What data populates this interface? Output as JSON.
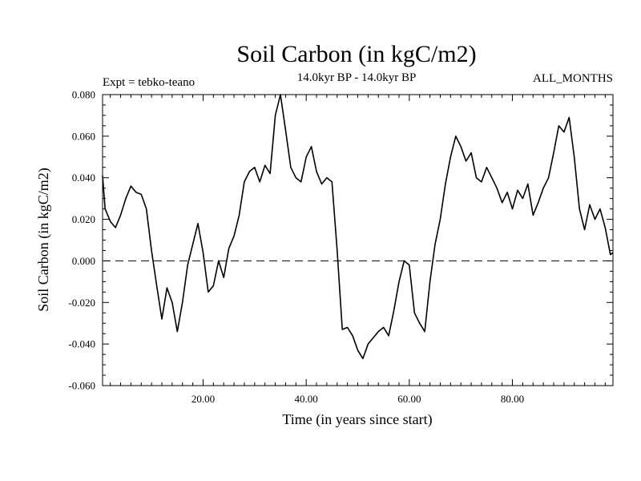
{
  "chart_data": {
    "type": "line",
    "title": "Soil Carbon (in kgC/m2)",
    "subtitle_left": "Expt = tebko-teano",
    "subtitle_center": "14.0kyr BP - 14.0kyr BP",
    "subtitle_right": "ALL_MONTHS",
    "xlabel": "Time (in years since start)",
    "ylabel": "Soil Carbon (in kgC/m2)",
    "xlim": [
      0.5,
      99.5
    ],
    "ylim": [
      -0.06,
      0.08
    ],
    "x_ticks": [
      20,
      40,
      60,
      80
    ],
    "x_tick_labels": [
      "20.00",
      "40.00",
      "60.00",
      "80.00"
    ],
    "y_ticks": [
      -0.06,
      -0.04,
      -0.02,
      0.0,
      0.02,
      0.04,
      0.06,
      0.08
    ],
    "y_tick_labels": [
      "-0.060",
      "-0.040",
      "-0.020",
      "0.000",
      "0.020",
      "0.040",
      "0.060",
      "0.080"
    ],
    "reference_line": {
      "y": 0.0,
      "style": "dashed"
    },
    "series": [
      {
        "name": "Soil Carbon",
        "x": [
          0.5,
          1,
          2,
          3,
          4,
          5,
          6,
          7,
          8,
          9,
          10,
          11,
          12,
          13,
          14,
          15,
          16,
          17,
          18,
          19,
          20,
          21,
          22,
          23,
          24,
          25,
          26,
          27,
          28,
          29,
          30,
          31,
          32,
          33,
          34,
          35,
          36,
          37,
          38,
          39,
          40,
          41,
          42,
          43,
          44,
          45,
          46,
          47,
          48,
          49,
          50,
          51,
          52,
          53,
          54,
          55,
          56,
          57,
          58,
          59,
          60,
          61,
          62,
          63,
          64,
          65,
          66,
          67,
          68,
          69,
          70,
          71,
          72,
          73,
          74,
          75,
          76,
          77,
          78,
          79,
          80,
          81,
          82,
          83,
          84,
          85,
          86,
          87,
          88,
          89,
          90,
          91,
          92,
          93,
          94,
          95,
          96,
          97,
          98,
          99,
          99.5
        ],
        "y": [
          0.041,
          0.025,
          0.019,
          0.016,
          0.022,
          0.03,
          0.036,
          0.033,
          0.032,
          0.025,
          0.005,
          -0.012,
          -0.028,
          -0.013,
          -0.02,
          -0.034,
          -0.02,
          -0.002,
          0.008,
          0.018,
          0.004,
          -0.015,
          -0.012,
          0.0,
          -0.008,
          0.006,
          0.012,
          0.022,
          0.038,
          0.043,
          0.045,
          0.038,
          0.046,
          0.042,
          0.07,
          0.08,
          0.063,
          0.045,
          0.04,
          0.038,
          0.05,
          0.055,
          0.043,
          0.037,
          0.04,
          0.038,
          0.005,
          -0.033,
          -0.032,
          -0.036,
          -0.043,
          -0.047,
          -0.04,
          -0.037,
          -0.034,
          -0.032,
          -0.036,
          -0.024,
          -0.01,
          0.0,
          -0.002,
          -0.025,
          -0.03,
          -0.034,
          -0.01,
          0.008,
          0.02,
          0.037,
          0.05,
          0.06,
          0.055,
          0.048,
          0.052,
          0.04,
          0.038,
          0.045,
          0.04,
          0.035,
          0.028,
          0.033,
          0.025,
          0.034,
          0.03,
          0.037,
          0.022,
          0.028,
          0.035,
          0.04,
          0.052,
          0.065,
          0.062,
          0.069,
          0.05,
          0.025,
          0.015,
          0.027,
          0.02,
          0.025,
          0.016,
          0.003,
          0.004
        ]
      }
    ]
  }
}
